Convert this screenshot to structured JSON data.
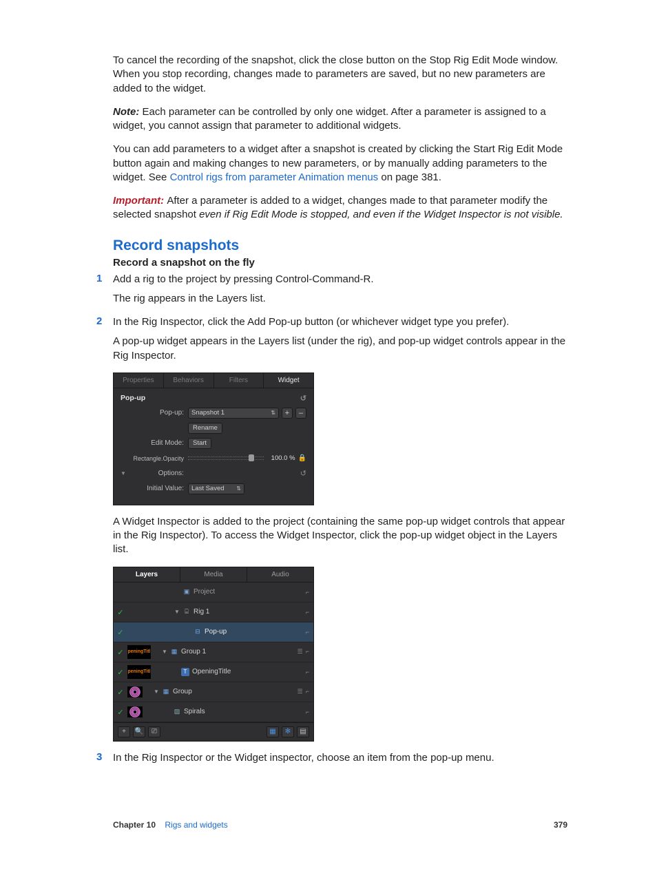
{
  "para1": "To cancel the recording of the snapshot, click the close button on the Stop Rig Edit Mode window. When you stop recording, changes made to parameters are saved, but no new parameters are added to the widget.",
  "note_label": "Note:  ",
  "note_body": "Each parameter can be controlled by only one widget. After a parameter is assigned to a widget, you cannot assign that parameter to additional widgets.",
  "para3_pre": "You can add parameters to a widget after a snapshot is created by clicking the Start Rig Edit Mode button again and making changes to new parameters, or by manually adding parameters to the widget. See ",
  "para3_link": "Control rigs from parameter Animation menus",
  "para3_post": " on page 381.",
  "important_label": "Important:  ",
  "important_body_pre": "After a parameter is added to a widget, changes made to that parameter modify the selected snapshot ",
  "important_body_ital": "even if Rig Edit Mode is stopped, and even if the Widget Inspector is not visible.",
  "section_title": "Record snapshots",
  "subhead": "Record a snapshot on the fly",
  "step1": "Add a rig to the project by pressing Control-Command-R.",
  "step1_sub": "The rig appears in the Layers list.",
  "step2": "In the Rig Inspector, click the Add Pop-up button (or whichever widget type you prefer).",
  "step2_sub": "A pop-up widget appears in the Layers list (under the rig), and pop-up widget controls appear in the Rig Inspector.",
  "para4": "A Widget Inspector is added to the project (containing the same pop-up widget controls that appear in the Rig Inspector). To access the Widget Inspector, click the pop-up widget object in the Layers list.",
  "step3": "In the Rig Inspector or the Widget inspector, choose an item from the pop-up menu.",
  "inspector": {
    "tabs": [
      "Properties",
      "Behaviors",
      "Filters",
      "Widget"
    ],
    "active_tab": "Widget",
    "group_title": "Pop-up",
    "popup_label": "Pop-up:",
    "popup_value": "Snapshot 1",
    "rename": "Rename",
    "editmode_label": "Edit Mode:",
    "editmode_btn": "Start",
    "rect_label": "Rectangle.Opacity",
    "rect_value": "100.0 %",
    "slider_pos": 0.94,
    "options_label": "Options:",
    "initial_label": "Initial Value:",
    "initial_value": "Last Saved",
    "plus": "+",
    "minus": "–"
  },
  "layers_panel": {
    "tabs": [
      "Layers",
      "Media",
      "Audio"
    ],
    "active_tab": "Layers",
    "rows": [
      {
        "check": false,
        "thumb": "",
        "disclose": "",
        "icon": "doc",
        "name": "Project",
        "name_color": "#9a9a9a",
        "indent": 78,
        "sel": false,
        "right": [
          "lock"
        ]
      },
      {
        "check": true,
        "thumb": "",
        "disclose": "▼",
        "icon": "rig",
        "name": "Rig 1",
        "name_color": "#cfcfcf",
        "indent": 78,
        "sel": false,
        "right": [
          "lock"
        ]
      },
      {
        "check": true,
        "thumb": "",
        "disclose": "",
        "icon": "slider",
        "name": "Pop-up",
        "name_color": "#e8e8e8",
        "indent": 94,
        "sel": true,
        "right": [
          "lock"
        ]
      },
      {
        "check": true,
        "thumb": "peningTitl",
        "disclose": "▼",
        "icon": "group",
        "name": "Group 1",
        "name_color": "#cfcfcf",
        "indent": 60,
        "sel": false,
        "right": [
          "stack",
          "lock"
        ]
      },
      {
        "check": true,
        "thumb": "peningTitl",
        "disclose": "",
        "icon": "text",
        "name": "OpeningTitle",
        "name_color": "#cfcfcf",
        "indent": 76,
        "sel": false,
        "right": [
          "lock"
        ]
      },
      {
        "check": true,
        "thumb": "swirl",
        "disclose": "▼",
        "icon": "group",
        "name": "Group",
        "name_color": "#cfcfcf",
        "indent": 60,
        "sel": false,
        "right": [
          "stack",
          "lock"
        ]
      },
      {
        "check": true,
        "thumb": "swirl",
        "disclose": "",
        "icon": "gen",
        "name": "Spirals",
        "name_color": "#cfcfcf",
        "indent": 76,
        "sel": false,
        "right": [
          "lock"
        ]
      }
    ],
    "footer_left": [
      "+",
      "search",
      "filter"
    ],
    "footer_right": [
      "view",
      "gear",
      "panel"
    ]
  },
  "footer": {
    "chapter_label": "Chapter 10",
    "chapter_name": "Rigs and widgets",
    "page": "379"
  },
  "colors": {
    "link": "#1c6acc",
    "important": "#b51f2a",
    "ui_bg": "#2f2f31",
    "ui_sel": "#32485f",
    "check": "#35b84a",
    "thumb_text": "#e57b00",
    "swirl": "#d96fd0"
  }
}
